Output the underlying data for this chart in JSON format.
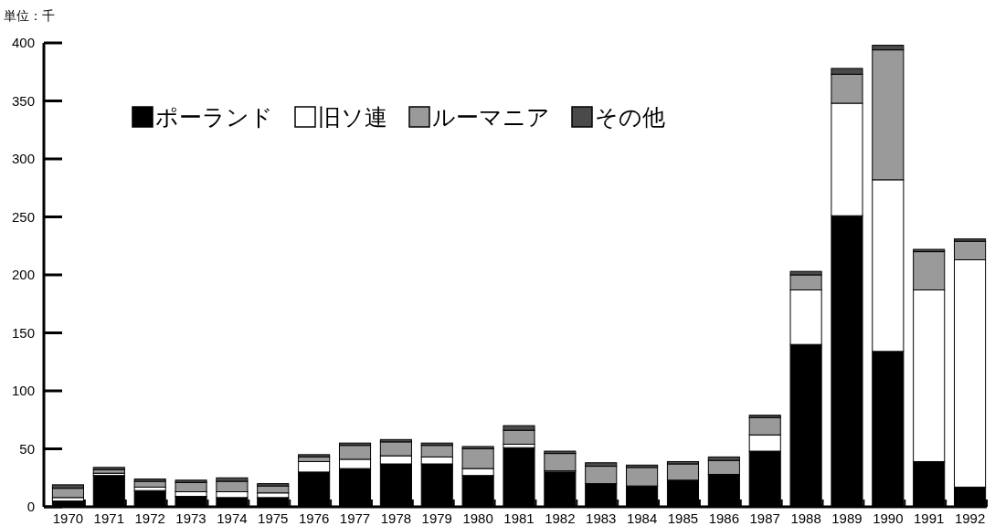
{
  "chart_data": {
    "type": "bar",
    "stacked": true,
    "ylabel": "単位：千",
    "categories": [
      "1970",
      "1971",
      "1972",
      "1973",
      "1974",
      "1975",
      "1976",
      "1977",
      "1978",
      "1979",
      "1980",
      "1981",
      "1982",
      "1983",
      "1984",
      "1985",
      "1986",
      "1987",
      "1988",
      "1989",
      "1990",
      "1991",
      "1992"
    ],
    "series": [
      {
        "name": "ポーランド",
        "color": "#000000",
        "values": [
          5,
          27,
          14,
          9,
          8,
          8,
          30,
          33,
          37,
          37,
          27,
          51,
          30,
          20,
          18,
          23,
          28,
          48,
          140,
          251,
          134,
          39,
          17
        ]
      },
      {
        "name": "旧ソ連",
        "color": "#ffffff",
        "values": [
          3,
          2,
          3,
          4,
          5,
          4,
          9,
          8,
          7,
          6,
          6,
          3,
          1,
          0,
          0,
          0,
          0,
          14,
          47,
          97,
          148,
          148,
          196
        ]
      },
      {
        "name": "ルーマニア",
        "color": "#9a9a9a",
        "values": [
          8,
          3,
          5,
          8,
          9,
          6,
          4,
          12,
          12,
          10,
          17,
          12,
          15,
          15,
          16,
          14,
          12,
          15,
          13,
          25,
          112,
          33,
          16
        ]
      },
      {
        "name": "その他",
        "color": "#4a4a4a",
        "values": [
          3,
          2,
          2,
          2,
          3,
          2,
          2,
          2,
          2,
          2,
          2,
          4,
          2,
          3,
          2,
          2,
          3,
          2,
          3,
          5,
          4,
          2,
          2
        ]
      }
    ],
    "ylim": [
      0,
      400
    ],
    "yticks": [
      0,
      50,
      100,
      150,
      200,
      250,
      300,
      350,
      400
    ],
    "grid": false,
    "legend": "top left"
  }
}
